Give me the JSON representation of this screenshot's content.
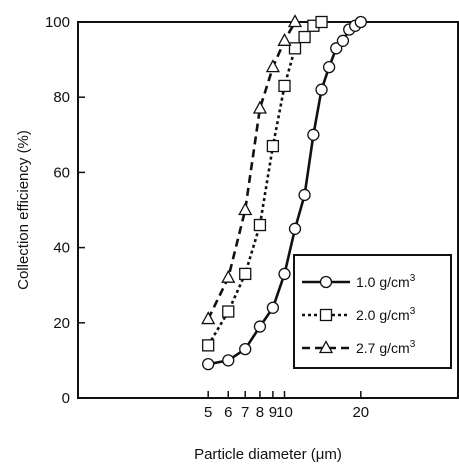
{
  "chart_data": {
    "type": "line",
    "xlabel": "Particle diameter (μm)",
    "ylabel": "Collection efficiency (%)",
    "x_scale": "log",
    "xlim": [
      5,
      25
    ],
    "ylim": [
      0,
      100
    ],
    "x_ticks": [
      5,
      6,
      7,
      8,
      9,
      10,
      20
    ],
    "x_tick_labels": [
      "5",
      "6",
      "7",
      "8",
      "9",
      "10",
      "20"
    ],
    "y_ticks": [
      0,
      20,
      40,
      60,
      80,
      100
    ],
    "y_tick_labels": [
      "0",
      "20",
      "40",
      "60",
      "80",
      "100"
    ],
    "grid": false,
    "legend_position": "lower-right",
    "series": [
      {
        "name": "1.0 g/cm³",
        "name_base": "1.0 g/cm",
        "name_sup": "3",
        "marker": "circle",
        "line_style": "solid",
        "x": [
          5.0,
          6.0,
          7.0,
          8.0,
          9.0,
          10.0,
          11.0,
          12.0,
          13.0,
          14.0,
          15.0,
          16.0,
          17.0,
          18.0,
          19.0,
          20.0
        ],
        "y": [
          9,
          10,
          13,
          19,
          24,
          33,
          45,
          54,
          70,
          82,
          88,
          93,
          95,
          98,
          99,
          100
        ]
      },
      {
        "name": "2.0 g/cm³",
        "name_base": "2.0 g/cm",
        "name_sup": "3",
        "marker": "square",
        "line_style": "dotted",
        "x": [
          5.0,
          6.0,
          7.0,
          8.0,
          9.0,
          10.0,
          11.0,
          12.0,
          13.0,
          14.0
        ],
        "y": [
          14,
          23,
          33,
          46,
          67,
          83,
          93,
          96,
          99,
          100
        ]
      },
      {
        "name": "2.7 g/cm³",
        "name_base": "2.7 g/cm",
        "name_sup": "3",
        "marker": "triangle",
        "line_style": "dashed",
        "x": [
          5.0,
          6.0,
          7.0,
          8.0,
          9.0,
          10.0,
          11.0
        ],
        "y": [
          21,
          32,
          50,
          77,
          88,
          95,
          100
        ]
      }
    ]
  }
}
